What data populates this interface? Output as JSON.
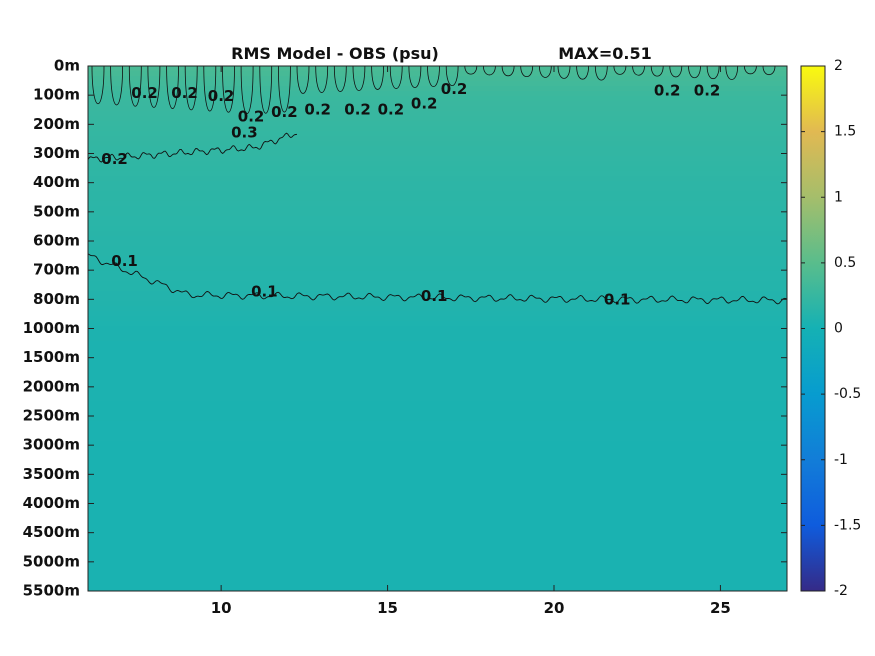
{
  "chart_data": {
    "type": "heatmap",
    "title": "RMS Model - OBS (psu)",
    "max_label": "MAX=0.51",
    "xlabel": "",
    "ylabel": "",
    "xlim": [
      6,
      27
    ],
    "x_ticks": [
      10,
      15,
      20,
      25
    ],
    "x_tick_labels": [
      "10",
      "15",
      "20",
      "25"
    ],
    "y_tick_labels": [
      "0m",
      "100m",
      "200m",
      "300m",
      "400m",
      "500m",
      "600m",
      "700m",
      "800m",
      "1000m",
      "1500m",
      "2000m",
      "2500m",
      "3000m",
      "3500m",
      "4000m",
      "4500m",
      "5000m",
      "5500m"
    ],
    "depth_scale": "piecewise: 0-800m linear, 800-1000m one interval, 1000-5500m in 500m steps",
    "colorbar": {
      "colormap": "parula",
      "min": -2,
      "max": 2,
      "ticks": [
        2,
        1.5,
        1,
        0.5,
        0,
        -0.5,
        -1,
        -1.5,
        -2
      ],
      "tick_labels": [
        "2",
        "1.5",
        "1",
        "0.5",
        "0",
        "-0.5",
        "-1",
        "-1.5",
        "-2"
      ]
    },
    "field_by_depth": {
      "depth_m": [
        0,
        100,
        200,
        300,
        400,
        500,
        600,
        700,
        800,
        1000,
        1500,
        2000,
        3000,
        4000,
        5000,
        5500
      ],
      "value": [
        0.4,
        0.28,
        0.24,
        0.21,
        0.18,
        0.16,
        0.14,
        0.12,
        0.1,
        0.06,
        0.05,
        0.05,
        0.04,
        0.04,
        0.04,
        0.04
      ]
    },
    "contours": [
      {
        "level": 0.2,
        "label": "0.2",
        "approx_depth_m": 310,
        "description": "wavy line rising from about 320m at x=6 to about 250m near x=11"
      },
      {
        "level": 0.1,
        "label": "0.1",
        "approx_depth_m": 780,
        "description": "wavy line from about 650m at x=6 descending to about 810m at x=27"
      },
      {
        "level": 0.2,
        "label": "0.2",
        "description": "closed fingers hanging from the surface between x=6 and x=27"
      }
    ],
    "contour_labels": [
      {
        "text": "0.2",
        "x": 7.7,
        "depth_m": 95
      },
      {
        "text": "0.2",
        "x": 8.9,
        "depth_m": 95
      },
      {
        "text": "0.2",
        "x": 10.0,
        "depth_m": 105
      },
      {
        "text": "0.2",
        "x": 10.9,
        "depth_m": 175
      },
      {
        "text": "0.3",
        "x": 10.7,
        "depth_m": 230
      },
      {
        "text": "0.2",
        "x": 11.9,
        "depth_m": 160
      },
      {
        "text": "0.2",
        "x": 12.9,
        "depth_m": 150
      },
      {
        "text": "0.2",
        "x": 14.1,
        "depth_m": 150
      },
      {
        "text": "0.2",
        "x": 15.1,
        "depth_m": 150
      },
      {
        "text": "0.2",
        "x": 16.1,
        "depth_m": 130
      },
      {
        "text": "0.2",
        "x": 17.0,
        "depth_m": 80
      },
      {
        "text": "0.2",
        "x": 23.4,
        "depth_m": 85
      },
      {
        "text": "0.2",
        "x": 24.6,
        "depth_m": 85
      },
      {
        "text": "0.2",
        "x": 6.8,
        "depth_m": 320
      },
      {
        "text": "0.1",
        "x": 7.1,
        "depth_m": 670
      },
      {
        "text": "0.1",
        "x": 11.3,
        "depth_m": 775
      },
      {
        "text": "0.1",
        "x": 16.4,
        "depth_m": 790
      },
      {
        "text": "0.1",
        "x": 21.9,
        "depth_m": 805
      }
    ]
  }
}
